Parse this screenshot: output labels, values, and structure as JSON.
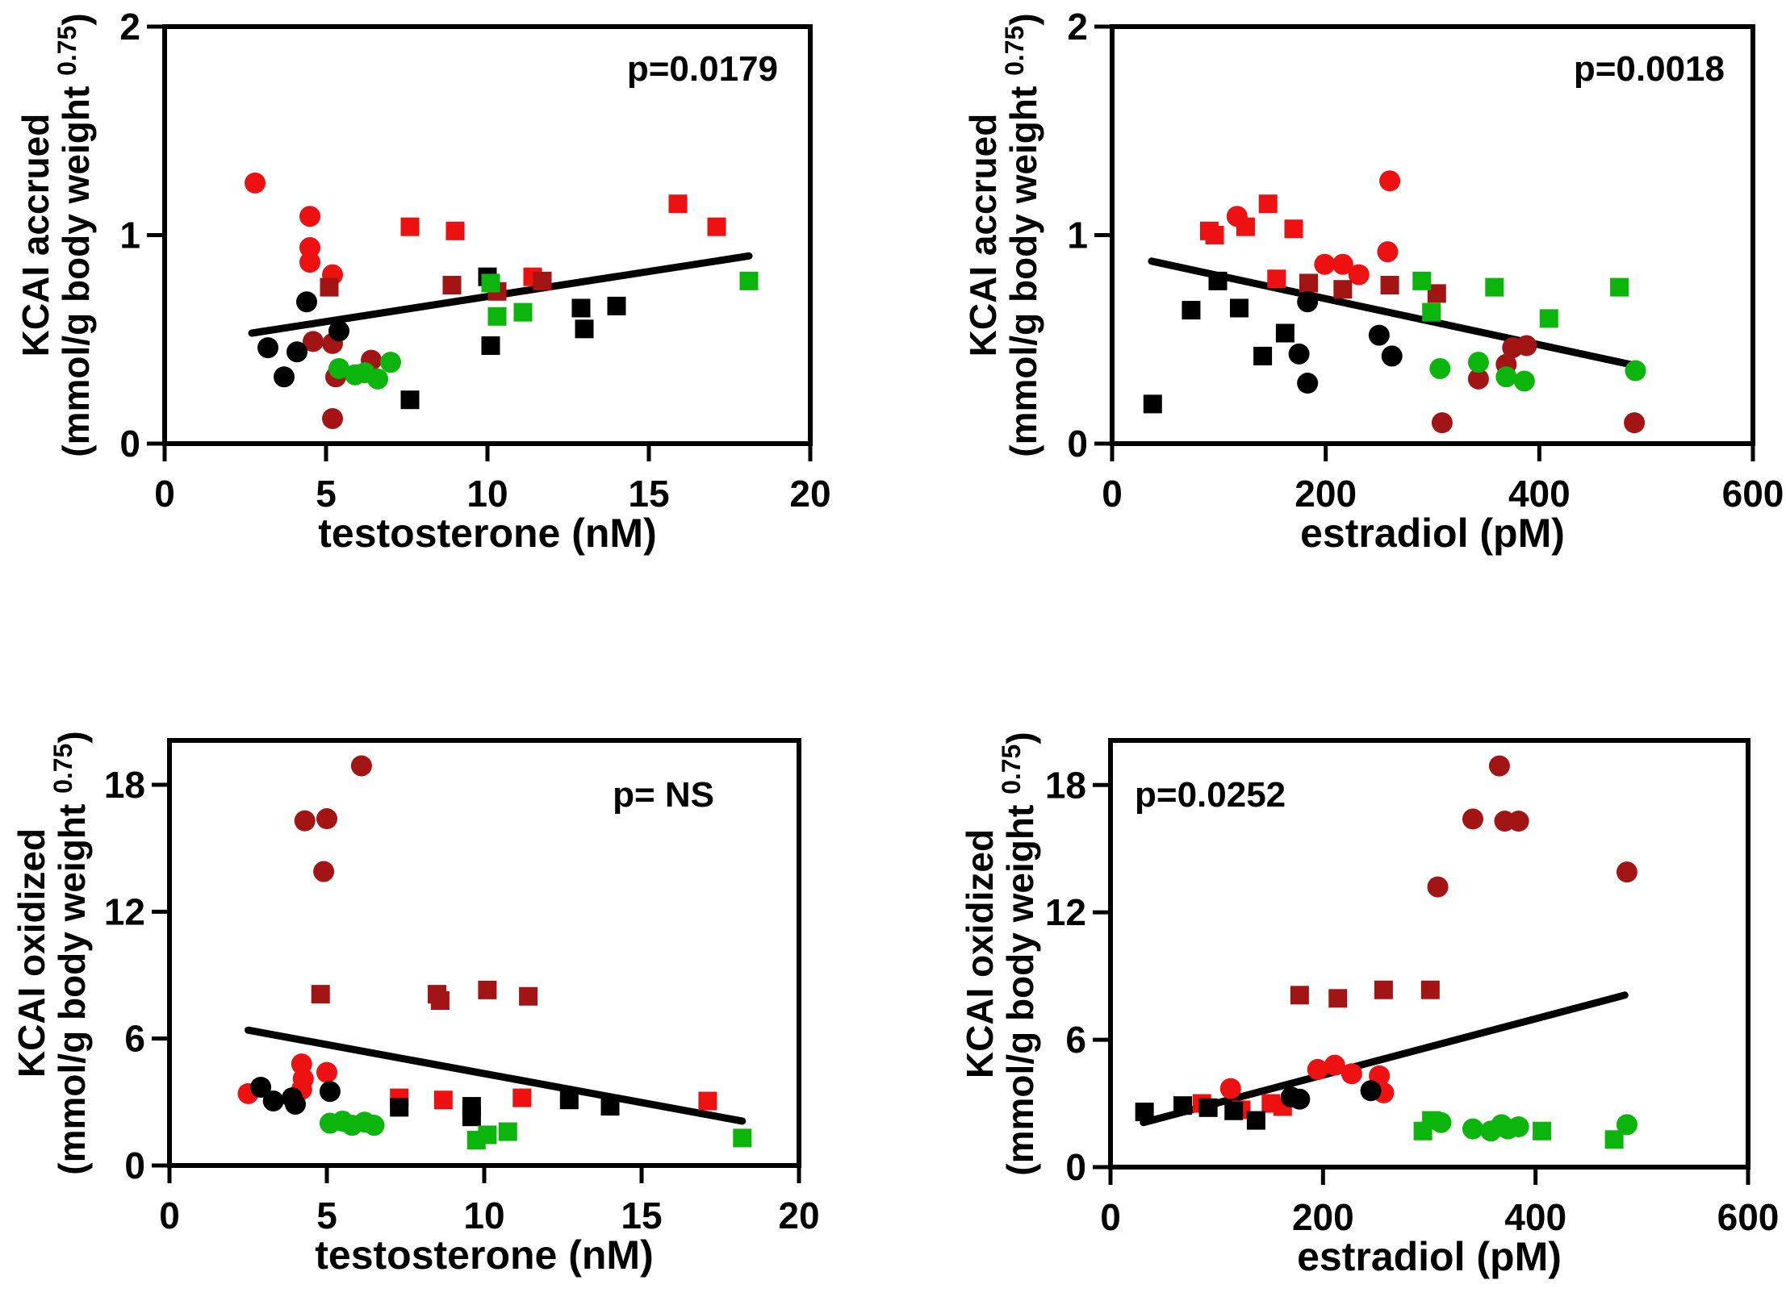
{
  "figure": {
    "background": "#ffffff",
    "grid": false,
    "legend": false
  },
  "colors": {
    "red": "#EE1111",
    "dark_red": "#A31414",
    "black": "#000000",
    "green": "#0BB50B",
    "line": "#000000"
  },
  "chart_data": [
    {
      "id": "top_left",
      "type": "scatter",
      "p_label": "p=0.0179",
      "p_align": "right",
      "xlabel": "testosterone (nM)",
      "ylabel": {
        "line1": "KCAI accrued",
        "line2_prefix": "(mmol/g body weight ",
        "superscript": "0.75",
        "suffix": ")"
      },
      "xlim": [
        0,
        20
      ],
      "xticks": [
        "0",
        "5",
        "10",
        "15",
        "20"
      ],
      "xtick_values": [
        0,
        5,
        10,
        15,
        20
      ],
      "ylim": [
        0,
        2
      ],
      "yticks": [
        "0",
        "1",
        "2"
      ],
      "ytick_values": [
        0,
        1,
        2
      ],
      "regression": {
        "x1": 2.7,
        "y1": 0.53,
        "x2": 18.1,
        "y2": 0.9
      },
      "series": [
        {
          "name": "red-circles",
          "marker": "circle",
          "color_key": "red",
          "points": [
            [
              2.8,
              1.25
            ],
            [
              4.5,
              1.09
            ],
            [
              4.5,
              0.94
            ],
            [
              4.5,
              0.87
            ],
            [
              5.2,
              0.81
            ]
          ]
        },
        {
          "name": "red-squares",
          "marker": "square",
          "color_key": "red",
          "points": [
            [
              7.6,
              1.04
            ],
            [
              9.0,
              1.02
            ],
            [
              11.4,
              0.8
            ],
            [
              15.9,
              1.15
            ],
            [
              17.1,
              1.04
            ]
          ]
        },
        {
          "name": "dark-red-circles",
          "marker": "circle",
          "color_key": "dark_red",
          "points": [
            [
              4.6,
              0.49
            ],
            [
              5.2,
              0.48
            ],
            [
              5.3,
              0.32
            ],
            [
              6.4,
              0.4
            ],
            [
              5.2,
              0.12
            ]
          ]
        },
        {
          "name": "dark-red-squares",
          "marker": "square",
          "color_key": "dark_red",
          "points": [
            [
              5.1,
              0.75
            ],
            [
              8.9,
              0.76
            ],
            [
              10.3,
              0.73
            ],
            [
              11.7,
              0.78
            ]
          ]
        },
        {
          "name": "black-circles",
          "marker": "circle",
          "color_key": "black",
          "points": [
            [
              4.4,
              0.68
            ],
            [
              3.2,
              0.46
            ],
            [
              4.1,
              0.44
            ],
            [
              5.4,
              0.54
            ],
            [
              3.7,
              0.32
            ]
          ]
        },
        {
          "name": "black-squares",
          "marker": "square",
          "color_key": "black",
          "points": [
            [
              10.0,
              0.8
            ],
            [
              10.1,
              0.47
            ],
            [
              7.6,
              0.21
            ],
            [
              12.9,
              0.65
            ],
            [
              14.0,
              0.66
            ],
            [
              13.0,
              0.55
            ]
          ]
        },
        {
          "name": "green-circles",
          "marker": "circle",
          "color_key": "green",
          "points": [
            [
              5.4,
              0.36
            ],
            [
              5.9,
              0.33
            ],
            [
              6.2,
              0.34
            ],
            [
              6.6,
              0.31
            ],
            [
              7.0,
              0.39
            ]
          ]
        },
        {
          "name": "green-squares",
          "marker": "square",
          "color_key": "green",
          "points": [
            [
              10.1,
              0.77
            ],
            [
              10.3,
              0.61
            ],
            [
              11.1,
              0.63
            ],
            [
              18.1,
              0.78
            ]
          ]
        }
      ]
    },
    {
      "id": "top_right",
      "type": "scatter",
      "p_label": "p=0.0018",
      "p_align": "right",
      "xlabel": "estradiol (pM)",
      "ylabel": {
        "line1": "KCAI accrued",
        "line2_prefix": "(mmol/g body weight ",
        "superscript": "0.75",
        "suffix": ")"
      },
      "xlim": [
        0,
        600
      ],
      "xticks": [
        "0",
        "200",
        "400",
        "600"
      ],
      "xtick_values": [
        0,
        200,
        400,
        600
      ],
      "ylim": [
        0,
        2
      ],
      "yticks": [
        "0",
        "1",
        "2"
      ],
      "ytick_values": [
        0,
        1,
        2
      ],
      "regression": {
        "x1": 37,
        "y1": 0.875,
        "x2": 485,
        "y2": 0.38
      },
      "series": [
        {
          "name": "red-circles",
          "marker": "circle",
          "color_key": "red",
          "points": [
            [
              117,
              1.09
            ],
            [
              199,
              0.86
            ],
            [
              216,
              0.86
            ],
            [
              231,
              0.81
            ],
            [
              258,
              0.92
            ],
            [
              260,
              1.26
            ]
          ]
        },
        {
          "name": "red-squares",
          "marker": "square",
          "color_key": "red",
          "points": [
            [
              91,
              1.02
            ],
            [
              96,
              1.0
            ],
            [
              125,
              1.04
            ],
            [
              146,
              1.15
            ],
            [
              154,
              0.79
            ],
            [
              170,
              1.03
            ]
          ]
        },
        {
          "name": "dark-red-circles",
          "marker": "circle",
          "color_key": "dark_red",
          "points": [
            [
              309,
              0.1
            ],
            [
              343,
              0.31
            ],
            [
              369,
              0.38
            ],
            [
              375,
              0.46
            ],
            [
              388,
              0.47
            ],
            [
              489,
              0.1
            ]
          ]
        },
        {
          "name": "dark-red-squares",
          "marker": "square",
          "color_key": "dark_red",
          "points": [
            [
              184,
              0.77
            ],
            [
              216,
              0.74
            ],
            [
              260,
              0.76
            ],
            [
              304,
              0.72
            ]
          ]
        },
        {
          "name": "black-circles",
          "marker": "circle",
          "color_key": "black",
          "points": [
            [
              175,
              0.43
            ],
            [
              183,
              0.68
            ],
            [
              183,
              0.29
            ],
            [
              250,
              0.52
            ],
            [
              262,
              0.42
            ]
          ]
        },
        {
          "name": "black-squares",
          "marker": "square",
          "color_key": "black",
          "points": [
            [
              38,
              0.19
            ],
            [
              74,
              0.64
            ],
            [
              99,
              0.78
            ],
            [
              119,
              0.65
            ],
            [
              141,
              0.42
            ],
            [
              162,
              0.53
            ]
          ]
        },
        {
          "name": "green-circles",
          "marker": "circle",
          "color_key": "green",
          "points": [
            [
              307,
              0.36
            ],
            [
              343,
              0.39
            ],
            [
              369,
              0.32
            ],
            [
              386,
              0.3
            ],
            [
              490,
              0.35
            ]
          ]
        },
        {
          "name": "green-squares",
          "marker": "square",
          "color_key": "green",
          "points": [
            [
              290,
              0.78
            ],
            [
              299,
              0.63
            ],
            [
              358,
              0.75
            ],
            [
              409,
              0.6
            ],
            [
              475,
              0.75
            ]
          ]
        }
      ]
    },
    {
      "id": "bottom_left",
      "type": "scatter",
      "p_label": "p= NS",
      "p_align": "right",
      "xlabel": "testosterone (nM)",
      "ylabel": {
        "line1": "KCAI oxidized",
        "line2_prefix": "(mmol/g body weight ",
        "superscript": "0.75",
        "suffix": ")"
      },
      "xlim": [
        0,
        20
      ],
      "xticks": [
        "0",
        "5",
        "10",
        "15",
        "20"
      ],
      "xtick_values": [
        0,
        5,
        10,
        15,
        20
      ],
      "ylim": [
        0,
        20.1
      ],
      "yticks": [
        "0",
        "6",
        "12",
        "18"
      ],
      "ytick_values": [
        0,
        6,
        12,
        18
      ],
      "regression": {
        "x1": 2.5,
        "y1": 6.4,
        "x2": 18.2,
        "y2": 2.1
      },
      "series": [
        {
          "name": "dark-red-circles",
          "marker": "circle",
          "color_key": "dark_red",
          "points": [
            [
              4.3,
              16.3
            ],
            [
              5.0,
              16.4
            ],
            [
              4.9,
              13.9
            ],
            [
              6.1,
              18.9
            ]
          ]
        },
        {
          "name": "dark-red-squares",
          "marker": "square",
          "color_key": "dark_red",
          "points": [
            [
              4.8,
              8.1
            ],
            [
              8.5,
              8.1
            ],
            [
              8.6,
              7.8
            ],
            [
              10.1,
              8.3
            ],
            [
              11.4,
              8.0
            ]
          ]
        },
        {
          "name": "red-circles",
          "marker": "circle",
          "color_key": "red",
          "points": [
            [
              2.5,
              3.4
            ],
            [
              4.2,
              4.8
            ],
            [
              4.25,
              4.1
            ],
            [
              4.2,
              3.6
            ],
            [
              5.0,
              4.4
            ]
          ]
        },
        {
          "name": "red-squares",
          "marker": "square",
          "color_key": "red",
          "points": [
            [
              7.3,
              3.2
            ],
            [
              8.7,
              3.1
            ],
            [
              11.2,
              3.2
            ],
            [
              17.1,
              3.05
            ]
          ]
        },
        {
          "name": "black-circles",
          "marker": "circle",
          "color_key": "black",
          "points": [
            [
              2.9,
              3.7
            ],
            [
              3.3,
              3.05
            ],
            [
              3.9,
              3.2
            ],
            [
              4.0,
              2.9
            ],
            [
              5.1,
              3.5
            ]
          ]
        },
        {
          "name": "black-squares",
          "marker": "square",
          "color_key": "black",
          "points": [
            [
              7.3,
              2.75
            ],
            [
              9.6,
              2.8
            ],
            [
              9.6,
              2.3
            ],
            [
              12.7,
              3.1
            ],
            [
              14.0,
              2.8
            ]
          ]
        },
        {
          "name": "green-circles",
          "marker": "circle",
          "color_key": "green",
          "points": [
            [
              5.1,
              2.0
            ],
            [
              5.5,
              2.1
            ],
            [
              5.8,
              1.9
            ],
            [
              6.2,
              2.05
            ],
            [
              6.5,
              1.9
            ]
          ]
        },
        {
          "name": "green-squares",
          "marker": "square",
          "color_key": "green",
          "points": [
            [
              9.75,
              1.2
            ],
            [
              10.1,
              1.45
            ],
            [
              10.75,
              1.6
            ],
            [
              18.2,
              1.3
            ]
          ]
        }
      ]
    },
    {
      "id": "bottom_right",
      "type": "scatter",
      "p_label": "p=0.0252",
      "p_align": "left",
      "xlabel": "estradiol (pM)",
      "ylabel": {
        "line1": "KCAI oxidized",
        "line2_prefix": "(mmol/g body weight ",
        "superscript": "0.75",
        "suffix": ")"
      },
      "xlim": [
        0,
        600
      ],
      "xticks": [
        "0",
        "200",
        "400",
        "600"
      ],
      "xtick_values": [
        0,
        200,
        400,
        600
      ],
      "ylim": [
        0,
        20.1
      ],
      "yticks": [
        "0",
        "6",
        "12",
        "18"
      ],
      "ytick_values": [
        0,
        6,
        12,
        18
      ],
      "regression": {
        "x1": 31,
        "y1": 2.1,
        "x2": 484,
        "y2": 8.1
      },
      "series": [
        {
          "name": "dark-red-circles",
          "marker": "circle",
          "color_key": "dark_red",
          "points": [
            [
              308,
              13.2
            ],
            [
              341,
              16.4
            ],
            [
              366,
              18.9
            ],
            [
              371,
              16.3
            ],
            [
              384,
              16.3
            ],
            [
              486,
              13.9
            ]
          ]
        },
        {
          "name": "dark-red-squares",
          "marker": "square",
          "color_key": "dark_red",
          "points": [
            [
              178,
              8.1
            ],
            [
              214,
              7.95
            ],
            [
              257,
              8.35
            ],
            [
              301,
              8.35
            ]
          ]
        },
        {
          "name": "red-circles",
          "marker": "circle",
          "color_key": "red",
          "points": [
            [
              113,
              3.7
            ],
            [
              195,
              4.6
            ],
            [
              211,
              4.8
            ],
            [
              227,
              4.4
            ],
            [
              253,
              4.3
            ],
            [
              257,
              3.5
            ]
          ]
        },
        {
          "name": "red-squares",
          "marker": "square",
          "color_key": "red",
          "points": [
            [
              86,
              3.0
            ],
            [
              123,
              2.7
            ],
            [
              151,
              3.0
            ],
            [
              162,
              2.85
            ]
          ]
        },
        {
          "name": "black-circles",
          "marker": "circle",
          "color_key": "black",
          "points": [
            [
              170,
              3.3
            ],
            [
              178,
              3.2
            ],
            [
              245,
              3.6
            ]
          ]
        },
        {
          "name": "black-squares",
          "marker": "square",
          "color_key": "black",
          "points": [
            [
              32,
              2.6
            ],
            [
              68,
              2.9
            ],
            [
              92,
              2.8
            ],
            [
              116,
              2.65
            ],
            [
              137,
              2.2
            ]
          ]
        },
        {
          "name": "green-circles",
          "marker": "circle",
          "color_key": "green",
          "points": [
            [
              311,
              2.1
            ],
            [
              341,
              1.8
            ],
            [
              358,
              1.7
            ],
            [
              368,
              2.0
            ],
            [
              374,
              1.8
            ],
            [
              384,
              1.9
            ],
            [
              486,
              2.0
            ]
          ]
        },
        {
          "name": "green-squares",
          "marker": "square",
          "color_key": "green",
          "points": [
            [
              294,
              1.7
            ],
            [
              302,
              2.2
            ],
            [
              406,
              1.7
            ],
            [
              474,
              1.3
            ]
          ]
        }
      ]
    }
  ]
}
